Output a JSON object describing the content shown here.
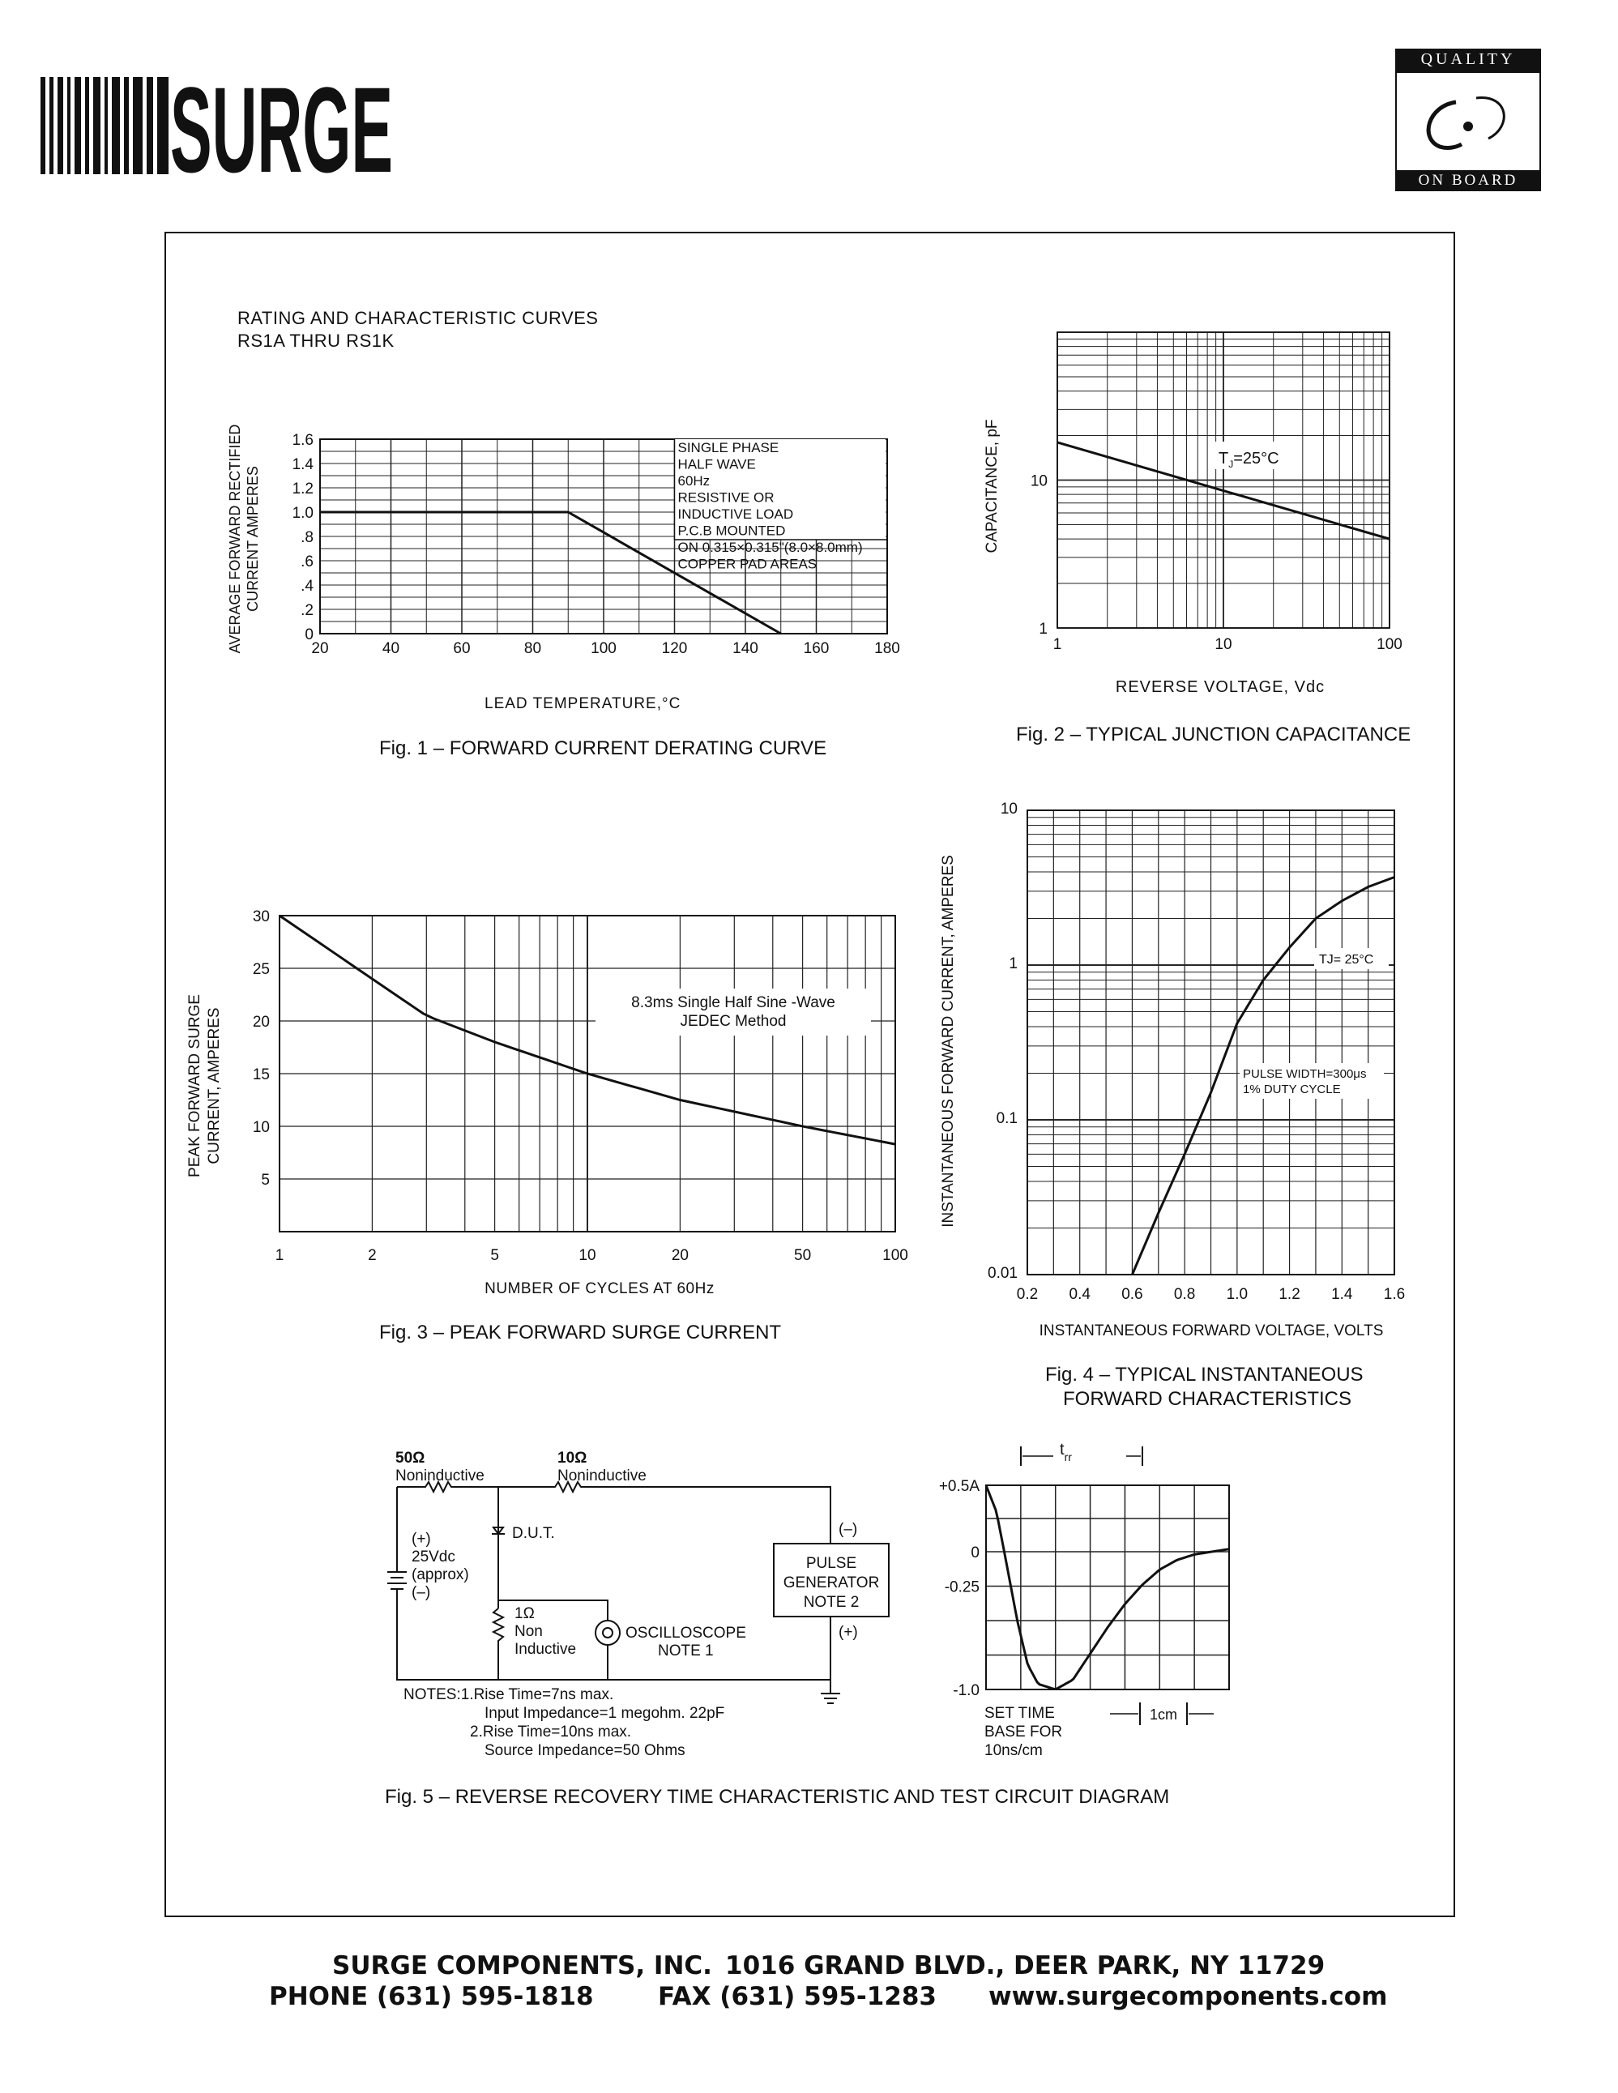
{
  "header": {
    "brand_logo": "SURGE",
    "badge_top": "QUALITY",
    "badge_bottom": "ON BOARD"
  },
  "section": {
    "title": "RATING AND CHARACTERISTIC CURVES",
    "subtitle": "RS1A THRU RS1K"
  },
  "chart_data": [
    {
      "type": "line",
      "caption": "Fig. 1 – FORWARD CURRENT DERATING CURVE",
      "xlabel": "LEAD TEMPERATURE,°C",
      "ylabel": "AVERAGE FORWARD RECTIFIED",
      "ylabel2": "CURRENT AMPERES",
      "xlim": [
        20,
        180
      ],
      "ylim": [
        0,
        1.6
      ],
      "x_ticks": [
        "20",
        "40",
        "60",
        "80",
        "100",
        "120",
        "140",
        "160",
        "180"
      ],
      "y_ticks": [
        "0",
        ".2",
        ".4",
        ".6",
        ".8",
        "1.0",
        "1.2",
        "1.4",
        "1.6"
      ],
      "annotation": [
        "SINGLE PHASE",
        "HALF WAVE",
        "60Hz",
        "RESISTIVE OR",
        "INDUCTIVE LOAD",
        "P.C.B MOUNTED",
        "ON 0.315×0.315\"(8.0×8.0mm)",
        "COPPER PAD AREAS"
      ],
      "x": [
        20,
        90,
        150
      ],
      "values": [
        1.0,
        1.0,
        0.0
      ],
      "grid": true
    },
    {
      "type": "line",
      "caption": "Fig. 2 – TYPICAL JUNCTION CAPACITANCE",
      "xlabel": "REVERSE VOLTAGE, Vdc",
      "ylabel": "CAPACITANCE, pF",
      "x_scale": "log",
      "y_scale": "log",
      "xlim": [
        1,
        100
      ],
      "ylim": [
        1,
        100
      ],
      "x_ticks": [
        "1",
        "10",
        "100"
      ],
      "y_ticks": [
        "1",
        "10"
      ],
      "annotation": "T",
      "annotation_sub": "J",
      "annotation_tail": "=25°C",
      "x": [
        1,
        100
      ],
      "values": [
        18,
        4
      ],
      "grid": true
    },
    {
      "type": "line",
      "caption": "Fig. 3 – PEAK FORWARD SURGE CURRENT",
      "xlabel": "NUMBER OF CYCLES AT 60Hz",
      "ylabel": "PEAK FORWARD SURGE",
      "ylabel2": "CURRENT, AMPERES",
      "x_scale": "log",
      "xlim": [
        1,
        100
      ],
      "ylim": [
        0,
        30
      ],
      "x_ticks": [
        "1",
        "2",
        "5",
        "10",
        "20",
        "50",
        "100"
      ],
      "y_ticks": [
        "5",
        "10",
        "15",
        "20",
        "25",
        "30"
      ],
      "annotation": [
        "8.3ms Single Half Sine -Wave",
        "JEDEC Method"
      ],
      "x": [
        1,
        2,
        3,
        5,
        10,
        20,
        50,
        100
      ],
      "values": [
        30,
        24,
        20.5,
        18,
        15,
        12.5,
        10,
        8.3
      ],
      "grid": true
    },
    {
      "type": "line",
      "caption": "Fig. 4 – TYPICAL INSTANTANEOUS",
      "caption2": "FORWARD CHARACTERISTICS",
      "xlabel": "INSTANTANEOUS FORWARD VOLTAGE, VOLTS",
      "ylabel": "INSTANTANEOUS FORWARD CURRENT, AMPERES",
      "y_scale": "log",
      "xlim": [
        0.2,
        1.6
      ],
      "ylim": [
        0.01,
        10
      ],
      "x_ticks": [
        "0.2",
        "0.4",
        "0.6",
        "0.8",
        "1.0",
        "1.2",
        "1.4",
        "1.6"
      ],
      "y_ticks": [
        "0.01",
        "0.1",
        "1",
        "10"
      ],
      "annotation": "TJ= 25°C",
      "annotation2": [
        "PULSE WIDTH=300μs",
        "1% DUTY CYCLE"
      ],
      "x": [
        0.6,
        0.7,
        0.8,
        0.9,
        1.0,
        1.1,
        1.2,
        1.3,
        1.4,
        1.5,
        1.6
      ],
      "values": [
        0.01,
        0.025,
        0.06,
        0.15,
        0.42,
        0.8,
        1.3,
        2.0,
        2.6,
        3.2,
        3.7
      ],
      "grid": true
    },
    {
      "type": "line",
      "caption": "Fig. 5 – REVERSE RECOVERY TIME CHARACTERISTIC AND TEST CIRCUIT DIAGRAM",
      "y_ticks": [
        "+0.5A",
        "0",
        "-0.25",
        "-1.0"
      ],
      "trr_label": "t",
      "trr_sub": "rr",
      "notes": [
        "SET TIME",
        "BASE FOR",
        "10ns/cm"
      ],
      "scale_label": "1cm",
      "x": [
        0,
        0.3,
        0.6,
        0.9,
        1.2,
        1.5,
        2.0,
        2.5,
        3.0,
        3.5,
        4.0,
        4.5,
        5.0,
        5.5,
        6.0,
        6.5,
        7.0
      ],
      "values": [
        0.5,
        0.3,
        -0.1,
        -0.5,
        -0.82,
        -0.96,
        -1.0,
        -0.93,
        -0.74,
        -0.55,
        -0.38,
        -0.24,
        -0.13,
        -0.06,
        -0.02,
        0.0,
        0.02
      ],
      "grid": true
    }
  ],
  "circuit": {
    "r1_value": "50Ω",
    "r1_desc": "Noninductive",
    "r2_value": "10Ω",
    "r2_desc": "Noninductive",
    "dut": "D.U.T.",
    "source": [
      "(+)",
      "25Vdc",
      "(approx)",
      "(–)"
    ],
    "r3_value": "1Ω",
    "r3_desc": [
      "Non",
      "Inductive"
    ],
    "osc": [
      "OSCILLOSCOPE",
      "NOTE 1"
    ],
    "pulse": [
      "PULSE",
      "GENERATOR",
      "NOTE 2"
    ],
    "pg_minus": "(–)",
    "pg_plus": "(+)",
    "notes": [
      "NOTES:1.Rise  Time=7ns  max.",
      "Input  Impedance=1 megohm.  22pF",
      "2.Rise  Time=10ns  max.",
      "Source  Impedance=50  Ohms"
    ]
  },
  "footer": {
    "line1_company": "SURGE COMPONENTS, INC.",
    "line1_address": "1016 GRAND BLVD., DEER PARK, NY  11729",
    "line2_phone": "PHONE (631) 595-1818",
    "line2_fax": "FAX  (631) 595-1283",
    "line2_web": "www.surgecomponents.com"
  }
}
